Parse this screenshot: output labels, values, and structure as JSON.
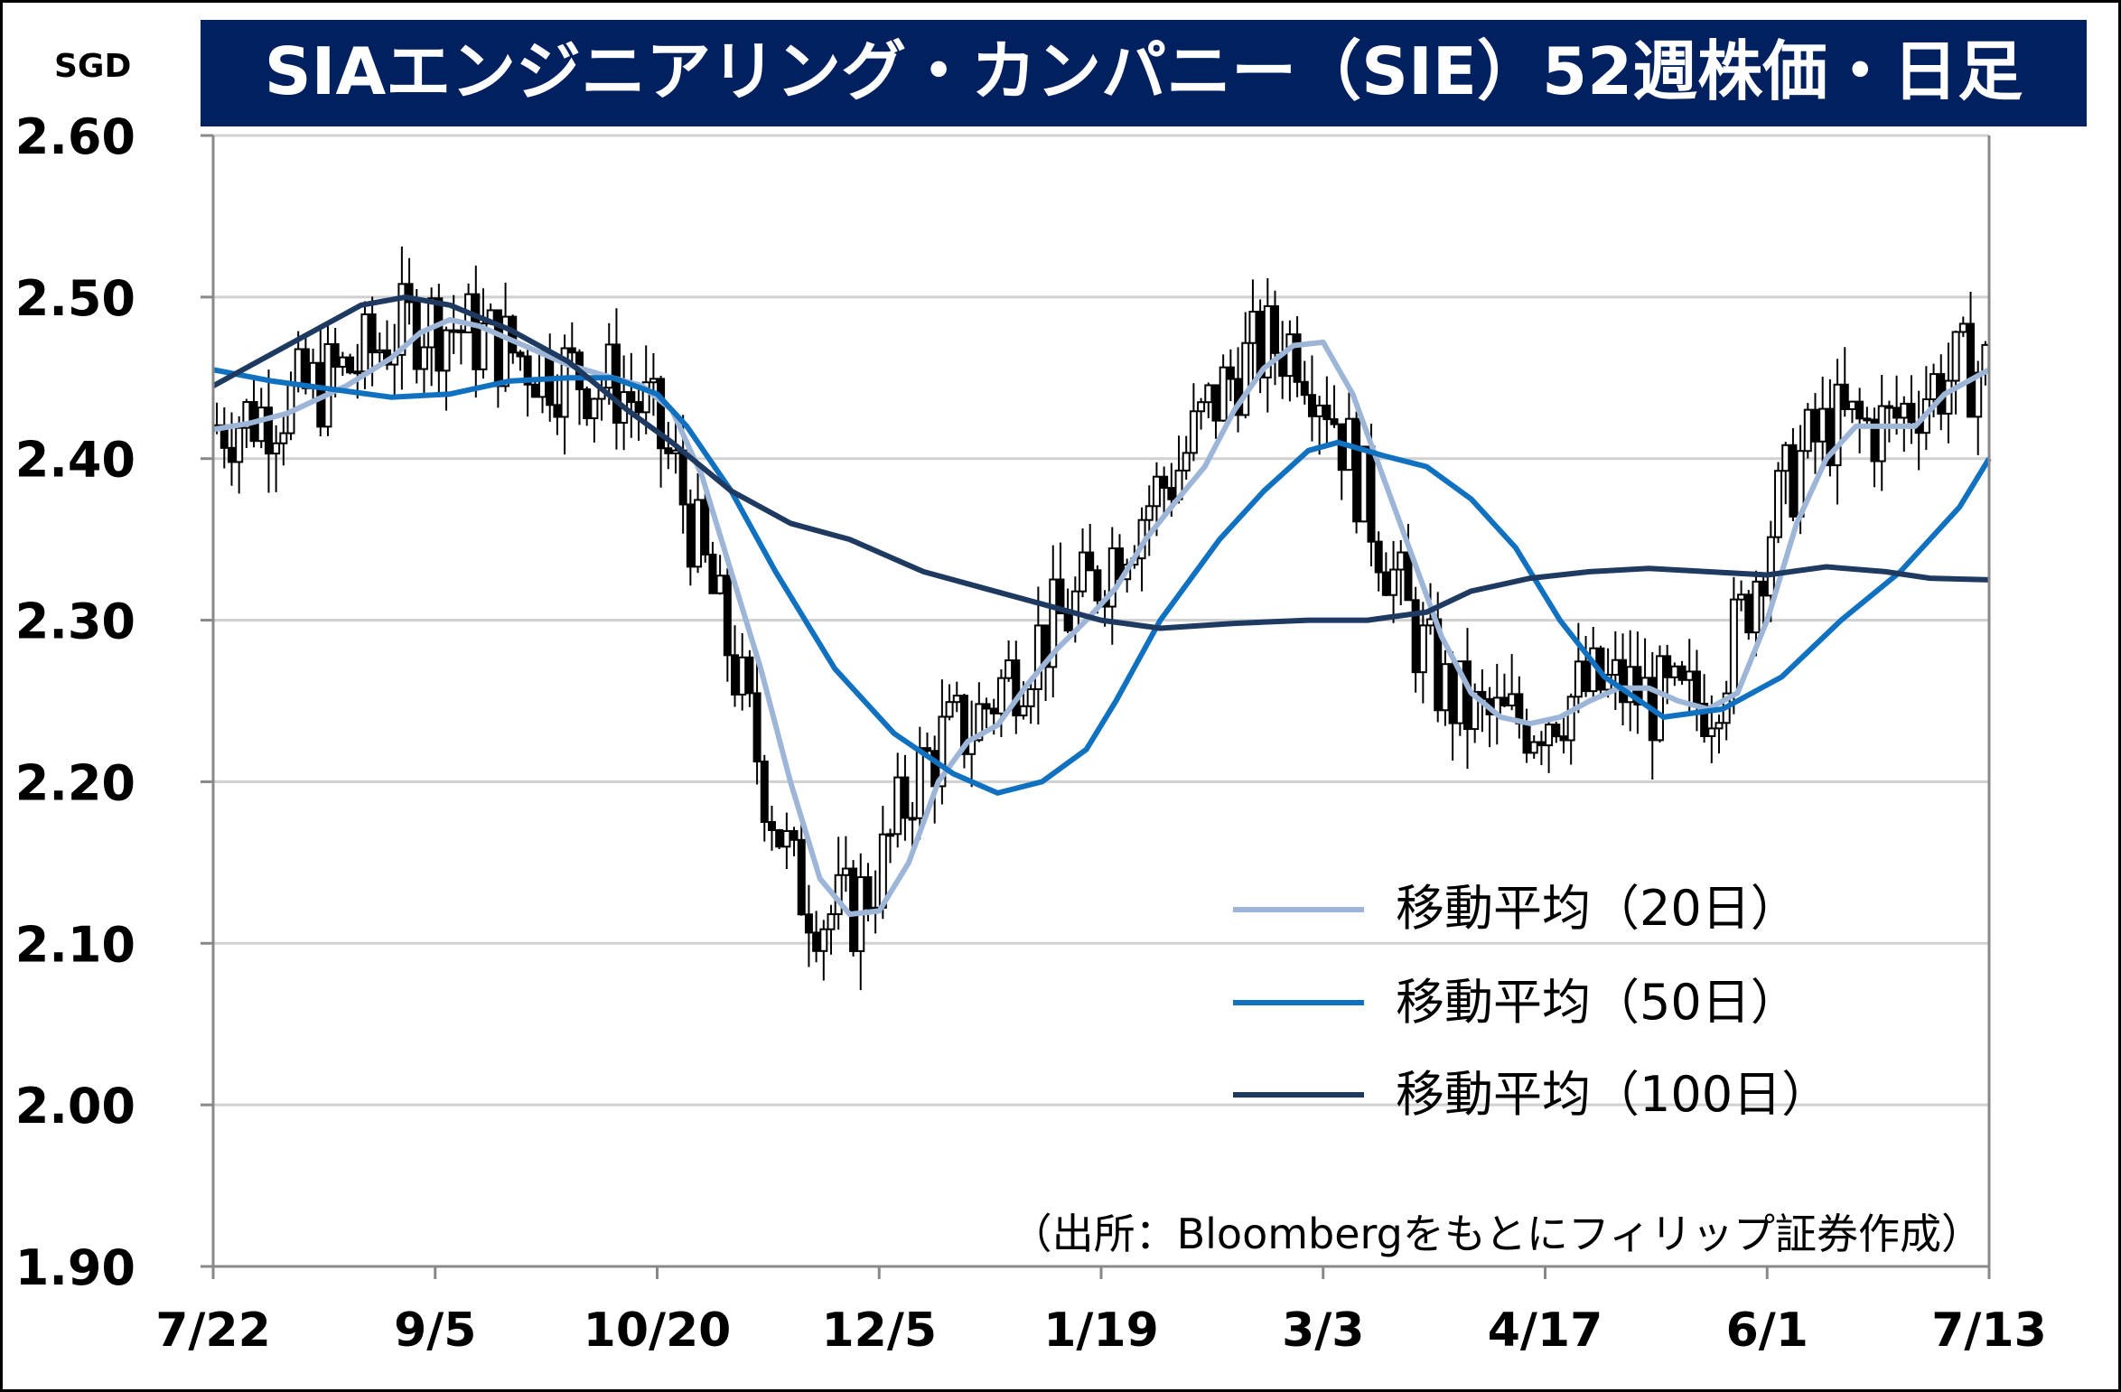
{
  "chart_data": {
    "type": "candlestick-line",
    "title": "SIAエンジニアリング・カンパニー（SIE）52週株価・日足",
    "unit": "SGD",
    "source_note": "（出所：Bloombergをもとにフィリップ証券作成）",
    "ylim": [
      1.9,
      2.6
    ],
    "y_ticks": [
      "2.60",
      "2.50",
      "2.40",
      "2.30",
      "2.20",
      "2.10",
      "2.00",
      "1.90"
    ],
    "x_labels": [
      "7/22",
      "9/5",
      "10/20",
      "12/5",
      "1/19",
      "3/3",
      "4/17",
      "6/1",
      "7/13"
    ],
    "grid": true,
    "legend_position": "inside-right",
    "colors": {
      "title_bg": "#002060",
      "ma20": "#9db6d8",
      "ma50": "#1071c0",
      "ma100": "#1f3a60",
      "candle": "#000000",
      "grid": "#d0d0d0"
    },
    "series": [
      {
        "name": "移動平均（20日）",
        "key": "ma20",
        "points": [
          [
            0,
            2.418
          ],
          [
            5,
            2.422
          ],
          [
            10,
            2.428
          ],
          [
            18,
            2.445
          ],
          [
            24,
            2.462
          ],
          [
            28,
            2.478
          ],
          [
            32,
            2.486
          ],
          [
            36,
            2.482
          ],
          [
            42,
            2.47
          ],
          [
            48,
            2.458
          ],
          [
            54,
            2.45
          ],
          [
            58,
            2.445
          ],
          [
            62,
            2.43
          ],
          [
            66,
            2.39
          ],
          [
            70,
            2.33
          ],
          [
            74,
            2.27
          ],
          [
            78,
            2.2
          ],
          [
            82,
            2.14
          ],
          [
            86,
            2.118
          ],
          [
            90,
            2.12
          ],
          [
            94,
            2.15
          ],
          [
            98,
            2.2
          ],
          [
            102,
            2.225
          ],
          [
            106,
            2.235
          ],
          [
            110,
            2.26
          ],
          [
            114,
            2.282
          ],
          [
            118,
            2.3
          ],
          [
            122,
            2.32
          ],
          [
            126,
            2.35
          ],
          [
            130,
            2.373
          ],
          [
            134,
            2.395
          ],
          [
            138,
            2.43
          ],
          [
            142,
            2.456
          ],
          [
            146,
            2.47
          ],
          [
            150,
            2.472
          ],
          [
            154,
            2.44
          ],
          [
            158,
            2.39
          ],
          [
            162,
            2.34
          ],
          [
            166,
            2.29
          ],
          [
            170,
            2.255
          ],
          [
            174,
            2.24
          ],
          [
            178,
            2.236
          ],
          [
            182,
            2.24
          ],
          [
            186,
            2.25
          ],
          [
            190,
            2.258
          ],
          [
            194,
            2.258
          ],
          [
            198,
            2.25
          ],
          [
            202,
            2.245
          ],
          [
            206,
            2.255
          ],
          [
            210,
            2.3
          ],
          [
            214,
            2.36
          ],
          [
            218,
            2.4
          ],
          [
            222,
            2.42
          ],
          [
            226,
            2.42
          ],
          [
            230,
            2.42
          ],
          [
            234,
            2.44
          ],
          [
            238,
            2.45
          ],
          [
            240,
            2.455
          ]
        ]
      },
      {
        "name": "移動平均（50日）",
        "key": "ma50",
        "points": [
          [
            0,
            2.455
          ],
          [
            8,
            2.448
          ],
          [
            16,
            2.443
          ],
          [
            24,
            2.438
          ],
          [
            32,
            2.44
          ],
          [
            40,
            2.448
          ],
          [
            48,
            2.45
          ],
          [
            54,
            2.45
          ],
          [
            60,
            2.44
          ],
          [
            64,
            2.42
          ],
          [
            70,
            2.38
          ],
          [
            76,
            2.33
          ],
          [
            84,
            2.27
          ],
          [
            92,
            2.23
          ],
          [
            100,
            2.205
          ],
          [
            106,
            2.193
          ],
          [
            112,
            2.2
          ],
          [
            118,
            2.22
          ],
          [
            122,
            2.25
          ],
          [
            128,
            2.3
          ],
          [
            136,
            2.35
          ],
          [
            142,
            2.38
          ],
          [
            148,
            2.405
          ],
          [
            152,
            2.41
          ],
          [
            158,
            2.402
          ],
          [
            164,
            2.395
          ],
          [
            170,
            2.375
          ],
          [
            176,
            2.345
          ],
          [
            182,
            2.3
          ],
          [
            188,
            2.265
          ],
          [
            196,
            2.24
          ],
          [
            204,
            2.245
          ],
          [
            212,
            2.265
          ],
          [
            220,
            2.3
          ],
          [
            228,
            2.33
          ],
          [
            236,
            2.37
          ],
          [
            240,
            2.4
          ]
        ]
      },
      {
        "name": "移動平均（100日）",
        "key": "ma100",
        "points": [
          [
            0,
            2.445
          ],
          [
            10,
            2.47
          ],
          [
            20,
            2.495
          ],
          [
            26,
            2.5
          ],
          [
            32,
            2.495
          ],
          [
            40,
            2.48
          ],
          [
            48,
            2.46
          ],
          [
            56,
            2.43
          ],
          [
            62,
            2.41
          ],
          [
            70,
            2.38
          ],
          [
            78,
            2.36
          ],
          [
            86,
            2.35
          ],
          [
            96,
            2.33
          ],
          [
            104,
            2.32
          ],
          [
            112,
            2.31
          ],
          [
            120,
            2.3
          ],
          [
            128,
            2.295
          ],
          [
            138,
            2.298
          ],
          [
            148,
            2.3
          ],
          [
            156,
            2.3
          ],
          [
            164,
            2.305
          ],
          [
            170,
            2.318
          ],
          [
            178,
            2.326
          ],
          [
            186,
            2.33
          ],
          [
            194,
            2.332
          ],
          [
            202,
            2.33
          ],
          [
            210,
            2.328
          ],
          [
            218,
            2.333
          ],
          [
            226,
            2.33
          ],
          [
            232,
            2.326
          ],
          [
            240,
            2.325
          ]
        ]
      }
    ]
  }
}
